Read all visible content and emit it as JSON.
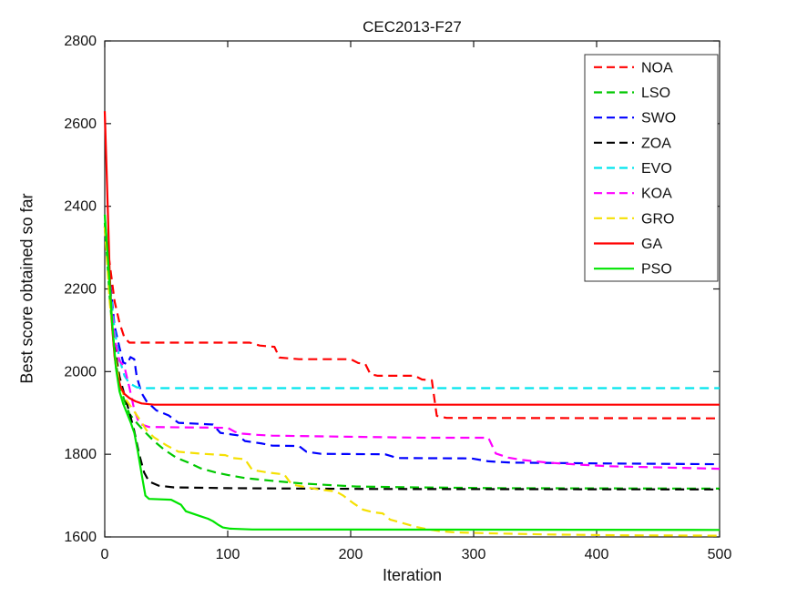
{
  "figure": {
    "title": "CEC2013-F27",
    "xlabel": "Iteration",
    "ylabel": "Best score obtained so far"
  },
  "chart_data": {
    "type": "line",
    "title": "CEC2013-F27",
    "xlabel": "Iteration",
    "ylabel": "Best score obtained so far",
    "xlim": [
      0,
      500
    ],
    "ylim": [
      1600,
      2800
    ],
    "xticks": [
      0,
      100,
      200,
      300,
      400,
      500
    ],
    "yticks": [
      1600,
      1800,
      2000,
      2200,
      2400,
      2600,
      2800
    ],
    "grid": false,
    "legend_position": "top-right",
    "series": [
      {
        "name": "NOA",
        "color": "#ff0000",
        "dash": true,
        "points": [
          [
            0,
            2350
          ],
          [
            4,
            2262
          ],
          [
            8,
            2170
          ],
          [
            12,
            2118
          ],
          [
            16,
            2082
          ],
          [
            20,
            2070
          ],
          [
            118,
            2070
          ],
          [
            126,
            2063
          ],
          [
            138,
            2060
          ],
          [
            142,
            2034
          ],
          [
            158,
            2030
          ],
          [
            200,
            2030
          ],
          [
            206,
            2021
          ],
          [
            212,
            2018
          ],
          [
            216,
            1994
          ],
          [
            222,
            1990
          ],
          [
            252,
            1990
          ],
          [
            258,
            1981
          ],
          [
            266,
            1979
          ],
          [
            270,
            1893
          ],
          [
            278,
            1888
          ],
          [
            500,
            1887
          ]
        ]
      },
      {
        "name": "LSO",
        "color": "#00c800",
        "dash": true,
        "points": [
          [
            0,
            2360
          ],
          [
            4,
            2180
          ],
          [
            8,
            2040
          ],
          [
            12,
            1968
          ],
          [
            16,
            1930
          ],
          [
            20,
            1898
          ],
          [
            26,
            1876
          ],
          [
            32,
            1856
          ],
          [
            40,
            1832
          ],
          [
            48,
            1812
          ],
          [
            58,
            1792
          ],
          [
            68,
            1780
          ],
          [
            78,
            1766
          ],
          [
            90,
            1756
          ],
          [
            100,
            1750
          ],
          [
            115,
            1742
          ],
          [
            135,
            1736
          ],
          [
            158,
            1730
          ],
          [
            180,
            1726
          ],
          [
            205,
            1722
          ],
          [
            250,
            1720
          ],
          [
            320,
            1718
          ],
          [
            500,
            1717
          ]
        ]
      },
      {
        "name": "SWO",
        "color": "#0000ff",
        "dash": true,
        "points": [
          [
            0,
            2350
          ],
          [
            4,
            2230
          ],
          [
            8,
            2110
          ],
          [
            12,
            2058
          ],
          [
            15,
            2022
          ],
          [
            18,
            2018
          ],
          [
            21,
            2035
          ],
          [
            24,
            2030
          ],
          [
            26,
            1988
          ],
          [
            30,
            1948
          ],
          [
            34,
            1928
          ],
          [
            42,
            1906
          ],
          [
            52,
            1894
          ],
          [
            60,
            1876
          ],
          [
            88,
            1872
          ],
          [
            94,
            1852
          ],
          [
            108,
            1846
          ],
          [
            114,
            1832
          ],
          [
            128,
            1826
          ],
          [
            136,
            1821
          ],
          [
            158,
            1820
          ],
          [
            164,
            1806
          ],
          [
            176,
            1801
          ],
          [
            228,
            1800
          ],
          [
            238,
            1791
          ],
          [
            298,
            1790
          ],
          [
            312,
            1783
          ],
          [
            330,
            1780
          ],
          [
            400,
            1778
          ],
          [
            500,
            1776
          ]
        ]
      },
      {
        "name": "ZOA",
        "color": "#000000",
        "dash": true,
        "points": [
          [
            0,
            2350
          ],
          [
            4,
            2195
          ],
          [
            8,
            2060
          ],
          [
            12,
            1988
          ],
          [
            16,
            1944
          ],
          [
            20,
            1902
          ],
          [
            24,
            1856
          ],
          [
            28,
            1800
          ],
          [
            32,
            1756
          ],
          [
            36,
            1734
          ],
          [
            44,
            1724
          ],
          [
            56,
            1720
          ],
          [
            100,
            1718
          ],
          [
            220,
            1716
          ],
          [
            500,
            1715
          ]
        ]
      },
      {
        "name": "EVO",
        "color": "#00e5ee",
        "dash": true,
        "points": [
          [
            0,
            2380
          ],
          [
            4,
            2220
          ],
          [
            8,
            2100
          ],
          [
            12,
            2030
          ],
          [
            16,
            1990
          ],
          [
            20,
            1972
          ],
          [
            26,
            1962
          ],
          [
            34,
            1960
          ],
          [
            500,
            1960
          ]
        ]
      },
      {
        "name": "KOA",
        "color": "#ff00ff",
        "dash": true,
        "points": [
          [
            0,
            2350
          ],
          [
            4,
            2200
          ],
          [
            8,
            2080
          ],
          [
            12,
            2026
          ],
          [
            16,
            2012
          ],
          [
            20,
            1962
          ],
          [
            24,
            1908
          ],
          [
            28,
            1874
          ],
          [
            36,
            1866
          ],
          [
            100,
            1864
          ],
          [
            106,
            1854
          ],
          [
            112,
            1850
          ],
          [
            124,
            1847
          ],
          [
            136,
            1845
          ],
          [
            210,
            1842
          ],
          [
            260,
            1840
          ],
          [
            312,
            1840
          ],
          [
            318,
            1802
          ],
          [
            328,
            1792
          ],
          [
            340,
            1786
          ],
          [
            360,
            1780
          ],
          [
            385,
            1775
          ],
          [
            410,
            1771
          ],
          [
            455,
            1768
          ],
          [
            500,
            1765
          ]
        ]
      },
      {
        "name": "GRO",
        "color": "#f5e003",
        "dash": true,
        "points": [
          [
            0,
            2350
          ],
          [
            4,
            2170
          ],
          [
            8,
            2046
          ],
          [
            12,
            1972
          ],
          [
            16,
            1938
          ],
          [
            22,
            1912
          ],
          [
            28,
            1886
          ],
          [
            34,
            1858
          ],
          [
            40,
            1841
          ],
          [
            50,
            1822
          ],
          [
            60,
            1806
          ],
          [
            80,
            1801
          ],
          [
            98,
            1798
          ],
          [
            104,
            1791
          ],
          [
            114,
            1788
          ],
          [
            120,
            1762
          ],
          [
            132,
            1756
          ],
          [
            146,
            1751
          ],
          [
            152,
            1727
          ],
          [
            164,
            1720
          ],
          [
            176,
            1714
          ],
          [
            188,
            1710
          ],
          [
            194,
            1700
          ],
          [
            202,
            1682
          ],
          [
            210,
            1666
          ],
          [
            218,
            1660
          ],
          [
            226,
            1657
          ],
          [
            232,
            1642
          ],
          [
            242,
            1634
          ],
          [
            252,
            1625
          ],
          [
            262,
            1619
          ],
          [
            272,
            1614
          ],
          [
            285,
            1611
          ],
          [
            310,
            1609
          ],
          [
            360,
            1606
          ],
          [
            420,
            1604
          ],
          [
            500,
            1603
          ]
        ]
      },
      {
        "name": "GA",
        "color": "#ff0000",
        "dash": false,
        "points": [
          [
            0,
            2630
          ],
          [
            2,
            2440
          ],
          [
            4,
            2240
          ],
          [
            6,
            2110
          ],
          [
            8,
            2036
          ],
          [
            10,
            1994
          ],
          [
            13,
            1962
          ],
          [
            16,
            1946
          ],
          [
            20,
            1936
          ],
          [
            25,
            1928
          ],
          [
            30,
            1923
          ],
          [
            40,
            1920
          ],
          [
            500,
            1920
          ]
        ]
      },
      {
        "name": "PSO",
        "color": "#00e400",
        "dash": false,
        "points": [
          [
            0,
            2380
          ],
          [
            3,
            2260
          ],
          [
            6,
            2120
          ],
          [
            9,
            2010
          ],
          [
            12,
            1952
          ],
          [
            15,
            1922
          ],
          [
            18,
            1900
          ],
          [
            21,
            1878
          ],
          [
            24,
            1852
          ],
          [
            27,
            1806
          ],
          [
            30,
            1752
          ],
          [
            33,
            1700
          ],
          [
            36,
            1692
          ],
          [
            54,
            1690
          ],
          [
            58,
            1684
          ],
          [
            62,
            1678
          ],
          [
            66,
            1662
          ],
          [
            72,
            1656
          ],
          [
            78,
            1650
          ],
          [
            84,
            1644
          ],
          [
            88,
            1638
          ],
          [
            92,
            1630
          ],
          [
            96,
            1623
          ],
          [
            102,
            1620
          ],
          [
            120,
            1618
          ],
          [
            500,
            1617
          ]
        ]
      }
    ]
  }
}
